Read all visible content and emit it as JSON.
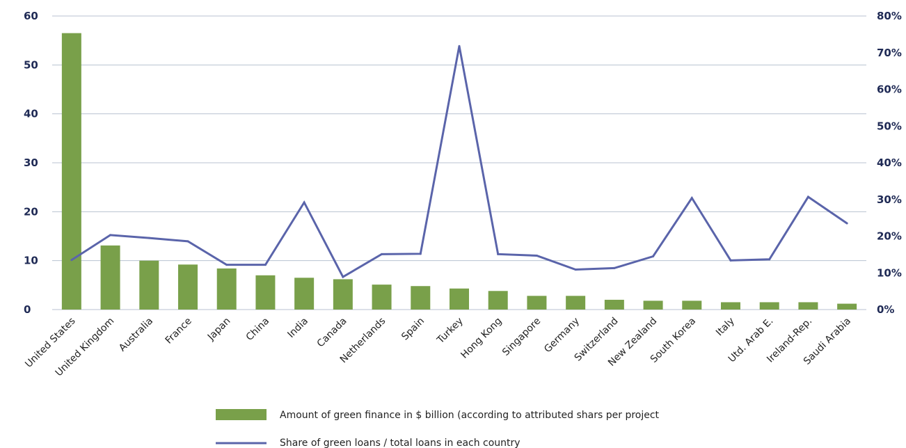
{
  "chart_data": {
    "type": "bar",
    "categories": [
      "United States",
      "United Kingdom",
      "Australia",
      "France",
      "Japan",
      "China",
      "India",
      "Canada",
      "Netherlands",
      "Spain",
      "Turkey",
      "Hong Kong",
      "Singapore",
      "Germany",
      "Switzerland",
      "New Zealand",
      "South Korea",
      "Italy",
      "Utd. Arab E.",
      "Ireland-Rep.",
      "Saudi Arabia"
    ],
    "series": [
      {
        "name": "Amount of green finance in $ billion (according to attributed shars per project",
        "type": "bar",
        "axis": "left",
        "color": "#79a04a",
        "values": [
          56.5,
          13.1,
          10.0,
          9.2,
          8.4,
          7.0,
          6.5,
          6.2,
          5.1,
          4.8,
          4.3,
          3.8,
          2.8,
          2.8,
          2.0,
          1.8,
          1.8,
          1.5,
          1.5,
          1.5,
          1.2
        ]
      },
      {
        "name": "Share of green loans / total loans in each country",
        "type": "line",
        "axis": "right",
        "color": "#5a64aa",
        "values": [
          13.5,
          20.3,
          19.5,
          18.6,
          12.2,
          12.2,
          29.2,
          8.9,
          15.1,
          15.2,
          71.8,
          15.1,
          14.7,
          10.9,
          11.3,
          14.5,
          30.4,
          13.4,
          13.7,
          30.7,
          23.5
        ]
      }
    ],
    "y_left": {
      "ticks": [
        "0",
        "10",
        "20",
        "30",
        "40",
        "50",
        "60"
      ],
      "range": [
        0,
        60
      ]
    },
    "y_right": {
      "ticks": [
        "0%",
        "10%",
        "20%",
        "30%",
        "40%",
        "50%",
        "60%",
        "70%",
        "80%"
      ],
      "range": [
        0,
        80
      ]
    },
    "grid": true,
    "legend_position": "bottom"
  },
  "colors": {
    "bar": "#79a04a",
    "line": "#5a64aa",
    "grid": "#b8c2d0",
    "axis_text": "#1f2a55"
  }
}
